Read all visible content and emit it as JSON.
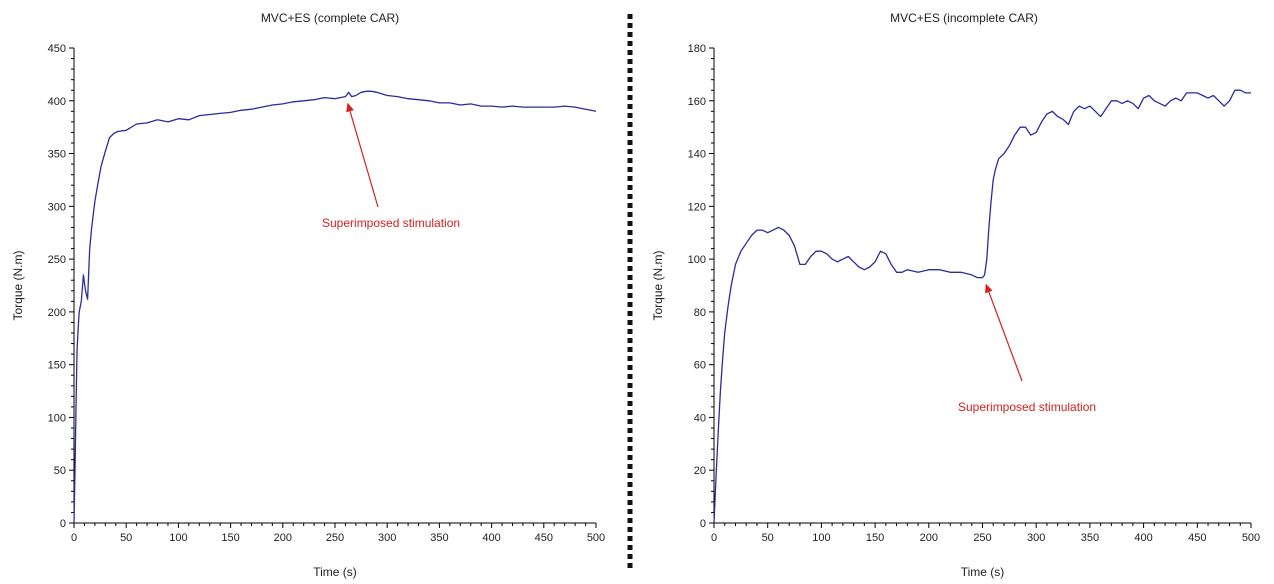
{
  "page": {
    "background": "#ffffff"
  },
  "colors": {
    "series": "#2b2b9e",
    "axis": "#000000",
    "annotation": "#d42020",
    "separator": "#111111"
  },
  "chart_data": [
    {
      "type": "line",
      "title": "MVC+ES (complete CAR)",
      "xlabel": "Time (s)",
      "ylabel": "Torque (N.m)",
      "xlim": [
        0,
        500
      ],
      "ylim": [
        0,
        450
      ],
      "xticks": [
        0,
        50,
        100,
        150,
        200,
        250,
        300,
        350,
        400,
        450,
        500
      ],
      "yticks": [
        0,
        50,
        100,
        150,
        200,
        250,
        300,
        350,
        400,
        450
      ],
      "grid": false,
      "series": [
        {
          "x": [
            0,
            1,
            2,
            3,
            4,
            5,
            7,
            9,
            11,
            13,
            15,
            17,
            20,
            23,
            26,
            30,
            34,
            38,
            42,
            50,
            60,
            70,
            80,
            90,
            100,
            110,
            120,
            130,
            140,
            150,
            160,
            170,
            180,
            190,
            200,
            210,
            220,
            230,
            240,
            250,
            255,
            260,
            263,
            266,
            270,
            275,
            280,
            285,
            290,
            300,
            310,
            320,
            330,
            340,
            350,
            360,
            370,
            380,
            390,
            400,
            410,
            420,
            430,
            440,
            450,
            460,
            470,
            480,
            490,
            500
          ],
          "y": [
            0,
            50,
            115,
            165,
            185,
            200,
            210,
            235,
            220,
            212,
            260,
            280,
            305,
            322,
            338,
            352,
            365,
            369,
            371,
            372,
            378,
            379,
            382,
            380,
            383,
            382,
            386,
            387,
            388,
            389,
            391,
            392,
            394,
            396,
            397,
            399,
            400,
            401,
            403,
            402,
            403,
            404,
            408,
            404,
            405,
            408,
            409,
            409,
            408,
            405,
            404,
            402,
            401,
            400,
            398,
            398,
            396,
            397,
            395,
            395,
            394,
            395,
            394,
            394,
            394,
            394,
            395,
            394,
            392,
            390
          ]
        }
      ],
      "annotation": {
        "text": "Superimposed stimulation",
        "x": 262,
        "y": 404
      }
    },
    {
      "type": "line",
      "title": "MVC+ES (incomplete CAR)",
      "xlabel": "Time (s)",
      "ylabel": "Torque (N.m)",
      "xlim": [
        0,
        500
      ],
      "ylim": [
        0,
        180
      ],
      "xticks": [
        0,
        50,
        100,
        150,
        200,
        250,
        300,
        350,
        400,
        450,
        500
      ],
      "yticks": [
        0,
        20,
        40,
        60,
        80,
        100,
        120,
        140,
        160,
        180
      ],
      "grid": false,
      "series": [
        {
          "x": [
            0,
            2,
            4,
            6,
            8,
            10,
            13,
            16,
            20,
            25,
            30,
            35,
            40,
            45,
            50,
            55,
            60,
            65,
            70,
            75,
            80,
            85,
            90,
            95,
            100,
            105,
            110,
            115,
            120,
            125,
            130,
            135,
            140,
            145,
            150,
            155,
            160,
            165,
            170,
            175,
            180,
            190,
            200,
            210,
            220,
            230,
            240,
            245,
            250,
            252,
            254,
            256,
            258,
            260,
            262,
            265,
            270,
            275,
            280,
            285,
            290,
            295,
            300,
            305,
            310,
            315,
            320,
            325,
            330,
            335,
            340,
            345,
            350,
            355,
            360,
            365,
            370,
            375,
            380,
            385,
            390,
            395,
            400,
            405,
            410,
            415,
            420,
            425,
            430,
            435,
            440,
            445,
            450,
            455,
            460,
            465,
            470,
            475,
            480,
            485,
            490,
            495,
            500
          ],
          "y": [
            0,
            18,
            35,
            50,
            62,
            72,
            82,
            90,
            98,
            103,
            106,
            109,
            111,
            111,
            110,
            111,
            112,
            111,
            109,
            105,
            98,
            98,
            101,
            103,
            103,
            102,
            100,
            99,
            100,
            101,
            99,
            97,
            96,
            97,
            99,
            103,
            102,
            98,
            95,
            95,
            96,
            95,
            96,
            96,
            95,
            95,
            94,
            93,
            93,
            94,
            100,
            112,
            122,
            130,
            134,
            138,
            140,
            143,
            147,
            150,
            150,
            147,
            148,
            152,
            155,
            156,
            154,
            153,
            151,
            156,
            158,
            157,
            158,
            156,
            154,
            157,
            160,
            160,
            159,
            160,
            159,
            157,
            161,
            162,
            160,
            159,
            158,
            160,
            161,
            160,
            163,
            163,
            163,
            162,
            161,
            162,
            160,
            158,
            160,
            164,
            164,
            163,
            163
          ]
        }
      ],
      "annotation": {
        "text": "Superimposed stimulation",
        "x": 253,
        "y": 93
      }
    }
  ]
}
